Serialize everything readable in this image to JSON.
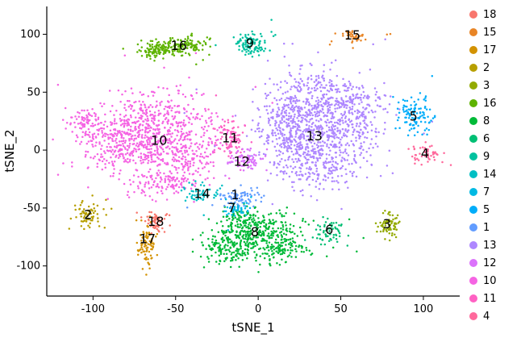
{
  "chart_data": {
    "type": "scatter",
    "title": "",
    "xlabel": "tSNE_1",
    "ylabel": "tSNE_2",
    "xlim": [
      -128,
      122
    ],
    "ylim": [
      -126,
      124
    ],
    "xticks": [
      -100,
      -50,
      0,
      50,
      100
    ],
    "yticks": [
      -100,
      -50,
      0,
      50,
      100
    ],
    "grid": false,
    "legend_position": "right",
    "legend": [
      {
        "label": "18",
        "color": "#F8766D"
      },
      {
        "label": "15",
        "color": "#E88526"
      },
      {
        "label": "17",
        "color": "#D39200"
      },
      {
        "label": "2",
        "color": "#B79F00"
      },
      {
        "label": "3",
        "color": "#93AA00"
      },
      {
        "label": "16",
        "color": "#5EB300"
      },
      {
        "label": "8",
        "color": "#00BA38"
      },
      {
        "label": "6",
        "color": "#00BF74"
      },
      {
        "label": "9",
        "color": "#00C19F"
      },
      {
        "label": "14",
        "color": "#00BFC4"
      },
      {
        "label": "7",
        "color": "#00B9E3"
      },
      {
        "label": "5",
        "color": "#00ADFA"
      },
      {
        "label": "1",
        "color": "#619CFF"
      },
      {
        "label": "13",
        "color": "#AE87FF"
      },
      {
        "label": "12",
        "color": "#DB72FB"
      },
      {
        "label": "10",
        "color": "#F564E3"
      },
      {
        "label": "11",
        "color": "#FF61C3"
      },
      {
        "label": "4",
        "color": "#FF699C"
      }
    ],
    "clusters": [
      {
        "id": "10",
        "color": "#F564E3",
        "label": [
          -60,
          8
        ],
        "blobs": [
          [
            -60,
            28,
            16,
            12,
            300
          ],
          [
            -75,
            5,
            13,
            12,
            260
          ],
          [
            -48,
            0,
            13,
            12,
            260
          ],
          [
            -58,
            -28,
            11,
            7,
            130
          ],
          [
            -95,
            10,
            9,
            11,
            130
          ],
          [
            -105,
            25,
            5,
            6,
            50
          ]
        ]
      },
      {
        "id": "13",
        "color": "#AE87FF",
        "label": [
          34,
          12
        ],
        "blobs": [
          [
            35,
            45,
            14,
            12,
            320
          ],
          [
            45,
            15,
            14,
            12,
            300
          ],
          [
            22,
            8,
            11,
            11,
            220
          ],
          [
            38,
            -15,
            13,
            9,
            200
          ],
          [
            58,
            40,
            9,
            11,
            130
          ],
          [
            15,
            30,
            8,
            9,
            110
          ]
        ]
      },
      {
        "id": "8",
        "color": "#00BA38",
        "label": [
          -2,
          -71
        ],
        "blobs": [
          [
            0,
            -72,
            14,
            9,
            280
          ],
          [
            -18,
            -85,
            9,
            7,
            140
          ],
          [
            15,
            -85,
            9,
            6,
            120
          ],
          [
            -8,
            -60,
            8,
            5,
            80
          ]
        ]
      },
      {
        "id": "16",
        "color": "#5EB300",
        "label": [
          -48,
          90
        ],
        "blobs": [
          [
            -55,
            88,
            9,
            3.5,
            130
          ],
          [
            -42,
            92,
            6,
            3,
            70
          ],
          [
            -63,
            84,
            4,
            3,
            40
          ]
        ]
      },
      {
        "id": "9",
        "color": "#00C19F",
        "label": [
          -5,
          92
        ],
        "blobs": [
          [
            -4,
            92,
            5,
            4.5,
            110
          ]
        ]
      },
      {
        "id": "15",
        "color": "#E88526",
        "label": [
          57,
          99
        ],
        "blobs": [
          [
            58,
            98,
            4,
            2.5,
            40
          ]
        ]
      },
      {
        "id": "5",
        "color": "#00ADFA",
        "label": [
          94,
          29
        ],
        "blobs": [
          [
            95,
            30,
            5.5,
            8,
            110
          ]
        ]
      },
      {
        "id": "4",
        "color": "#FF699C",
        "label": [
          101,
          -3
        ],
        "blobs": [
          [
            102,
            -3,
            5,
            3.5,
            55
          ]
        ]
      },
      {
        "id": "11",
        "color": "#FF61C3",
        "label": [
          -17,
          10
        ],
        "blobs": [
          [
            -17,
            10,
            4,
            9,
            90
          ]
        ]
      },
      {
        "id": "12",
        "color": "#DB72FB",
        "label": [
          -10,
          -10
        ],
        "blobs": [
          [
            -8,
            -9,
            5,
            5,
            80
          ]
        ]
      },
      {
        "id": "14",
        "color": "#00BFC4",
        "label": [
          -34,
          -38
        ],
        "blobs": [
          [
            -33,
            -38,
            7,
            4,
            55
          ]
        ]
      },
      {
        "id": "1",
        "color": "#619CFF",
        "label": [
          -14,
          -39
        ],
        "blobs": [
          [
            -11,
            -40,
            6,
            4,
            75
          ]
        ]
      },
      {
        "id": "7",
        "color": "#00B9E3",
        "label": [
          -16,
          -50
        ],
        "blobs": [
          [
            -13,
            -50,
            4,
            3,
            45
          ]
        ]
      },
      {
        "id": "2",
        "color": "#B79F00",
        "label": [
          -103,
          -56
        ],
        "blobs": [
          [
            -102,
            -56,
            4,
            6,
            70
          ]
        ]
      },
      {
        "id": "18",
        "color": "#F8766D",
        "label": [
          -62,
          -62
        ],
        "blobs": [
          [
            -63,
            -62,
            4,
            4.5,
            60
          ]
        ]
      },
      {
        "id": "17",
        "color": "#D39200",
        "label": [
          -67,
          -77
        ],
        "blobs": [
          [
            -68,
            -82,
            3,
            9,
            80
          ]
        ]
      },
      {
        "id": "6",
        "color": "#00BF74",
        "label": [
          43,
          -69
        ],
        "blobs": [
          [
            43,
            -71,
            4,
            4.5,
            60
          ]
        ]
      },
      {
        "id": "3",
        "color": "#93AA00",
        "label": [
          78,
          -64
        ],
        "blobs": [
          [
            79,
            -64,
            4,
            5.5,
            70
          ]
        ]
      }
    ]
  }
}
